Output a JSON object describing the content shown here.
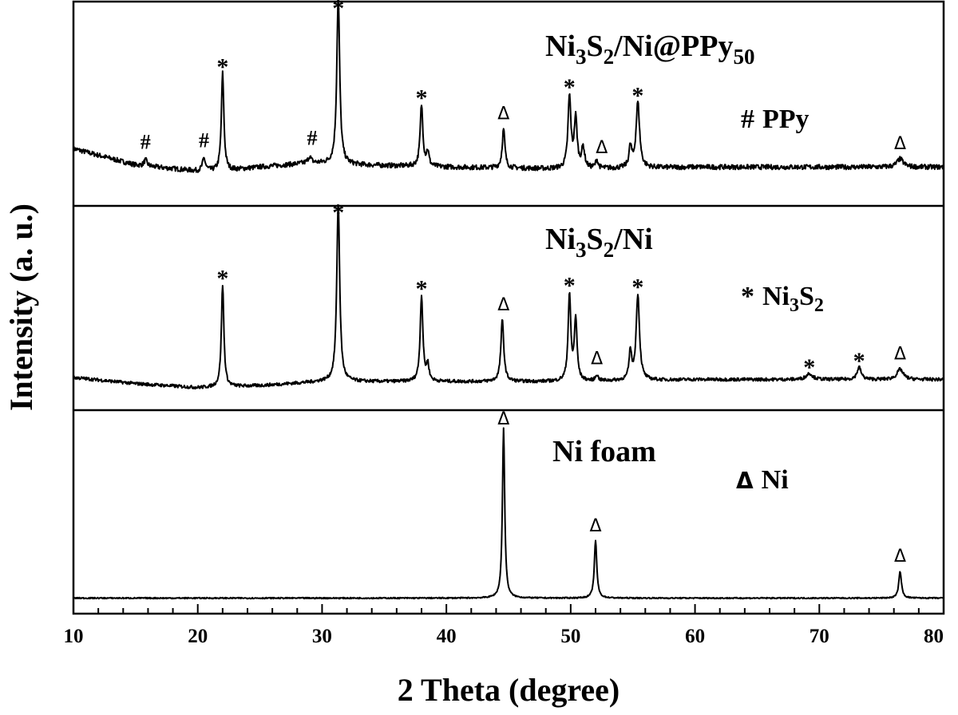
{
  "chart_data": {
    "type": "line",
    "xlabel": "2 Theta (degree)",
    "ylabel": "Intensity (a. u.)",
    "xlim": [
      10,
      80
    ],
    "x_ticks": [
      "10",
      "20",
      "30",
      "40",
      "50",
      "60",
      "70",
      "80"
    ],
    "panels": [
      {
        "title": {
          "main": "Ni",
          "s1": "3",
          "mid": "S",
          "s2": "2",
          "rest": "/Ni@PPy",
          "s3": "50"
        },
        "legend": {
          "symbol": "#",
          "text": "PPy"
        },
        "ylim": [
          0,
          1.0
        ],
        "baseline": [
          [
            10,
            0.28
          ],
          [
            15,
            0.2
          ],
          [
            20,
            0.17
          ],
          [
            22,
            0.17
          ],
          [
            25,
            0.19
          ],
          [
            29,
            0.21
          ],
          [
            33,
            0.2
          ],
          [
            40,
            0.19
          ],
          [
            50,
            0.18
          ],
          [
            60,
            0.19
          ],
          [
            70,
            0.19
          ],
          [
            80,
            0.19
          ]
        ],
        "noise": 0.012,
        "peaks": [
          {
            "x": 15.8,
            "h": 0.03,
            "w": 0.15
          },
          {
            "x": 20.5,
            "h": 0.06,
            "w": 0.15
          },
          {
            "x": 22.0,
            "h": 0.48,
            "w": 0.12
          },
          {
            "x": 29.0,
            "h": 0.03,
            "w": 0.15
          },
          {
            "x": 31.3,
            "h": 0.82,
            "w": 0.14
          },
          {
            "x": 38.0,
            "h": 0.3,
            "w": 0.13
          },
          {
            "x": 38.5,
            "h": 0.07,
            "w": 0.12
          },
          {
            "x": 44.6,
            "h": 0.19,
            "w": 0.13
          },
          {
            "x": 49.9,
            "h": 0.35,
            "w": 0.14
          },
          {
            "x": 50.4,
            "h": 0.24,
            "w": 0.14
          },
          {
            "x": 51.0,
            "h": 0.1,
            "w": 0.15
          },
          {
            "x": 52.1,
            "h": 0.04,
            "w": 0.12
          },
          {
            "x": 54.8,
            "h": 0.1,
            "w": 0.13
          },
          {
            "x": 55.4,
            "h": 0.32,
            "w": 0.17
          },
          {
            "x": 76.5,
            "h": 0.04,
            "w": 0.3
          }
        ],
        "markers": [
          {
            "x": 15.8,
            "sym": "#"
          },
          {
            "x": 20.5,
            "sym": "#"
          },
          {
            "x": 22.0,
            "sym": "*"
          },
          {
            "x": 29.2,
            "sym": "#"
          },
          {
            "x": 31.3,
            "sym": "*"
          },
          {
            "x": 38.0,
            "sym": "*"
          },
          {
            "x": 44.6,
            "sym": "Δ"
          },
          {
            "x": 49.9,
            "sym": "*"
          },
          {
            "x": 52.5,
            "sym": "Δ"
          },
          {
            "x": 55.4,
            "sym": "*"
          },
          {
            "x": 76.5,
            "sym": "Δ"
          }
        ]
      },
      {
        "title": {
          "main": "Ni",
          "s1": "3",
          "mid": "S",
          "s2": "2",
          "rest": "/Ni",
          "s3": ""
        },
        "legend": {
          "symbol": "*",
          "text": "Ni",
          "s1": "3",
          "mid": "S",
          "s2": "2"
        },
        "ylim": [
          0,
          1.0
        ],
        "baseline": [
          [
            10,
            0.16
          ],
          [
            15,
            0.13
          ],
          [
            20,
            0.11
          ],
          [
            25,
            0.12
          ],
          [
            30,
            0.14
          ],
          [
            40,
            0.14
          ],
          [
            50,
            0.14
          ],
          [
            60,
            0.15
          ],
          [
            70,
            0.15
          ],
          [
            80,
            0.15
          ]
        ],
        "noise": 0.008,
        "peaks": [
          {
            "x": 22.0,
            "h": 0.5,
            "w": 0.12
          },
          {
            "x": 31.3,
            "h": 0.88,
            "w": 0.14
          },
          {
            "x": 38.0,
            "h": 0.42,
            "w": 0.13
          },
          {
            "x": 38.5,
            "h": 0.08,
            "w": 0.12
          },
          {
            "x": 44.5,
            "h": 0.3,
            "w": 0.14
          },
          {
            "x": 49.9,
            "h": 0.42,
            "w": 0.13
          },
          {
            "x": 50.4,
            "h": 0.3,
            "w": 0.13
          },
          {
            "x": 52.1,
            "h": 0.03,
            "w": 0.12
          },
          {
            "x": 54.8,
            "h": 0.14,
            "w": 0.12
          },
          {
            "x": 55.4,
            "h": 0.42,
            "w": 0.16
          },
          {
            "x": 69.2,
            "h": 0.03,
            "w": 0.3
          },
          {
            "x": 73.2,
            "h": 0.06,
            "w": 0.2
          },
          {
            "x": 76.5,
            "h": 0.05,
            "w": 0.3
          }
        ],
        "markers": [
          {
            "x": 22.0,
            "sym": "*"
          },
          {
            "x": 31.3,
            "sym": "*"
          },
          {
            "x": 38.0,
            "sym": "*"
          },
          {
            "x": 44.6,
            "sym": "Δ"
          },
          {
            "x": 49.9,
            "sym": "*"
          },
          {
            "x": 52.1,
            "sym": "Δ"
          },
          {
            "x": 55.4,
            "sym": "*"
          },
          {
            "x": 69.2,
            "sym": "*"
          },
          {
            "x": 73.2,
            "sym": "*"
          },
          {
            "x": 76.5,
            "sym": "Δ"
          }
        ]
      },
      {
        "title": {
          "main": "Ni foam",
          "s1": "",
          "mid": "",
          "s2": "",
          "rest": "",
          "s3": ""
        },
        "legend": {
          "symbol": "Δ",
          "text": "Ni"
        },
        "ylim": [
          0,
          1.0
        ],
        "baseline": [
          [
            10,
            0.08
          ],
          [
            80,
            0.08
          ]
        ],
        "noise": 0.003,
        "peaks": [
          {
            "x": 44.6,
            "h": 0.83,
            "w": 0.11
          },
          {
            "x": 52.0,
            "h": 0.28,
            "w": 0.12
          },
          {
            "x": 76.5,
            "h": 0.13,
            "w": 0.13
          }
        ],
        "markers": [
          {
            "x": 44.6,
            "sym": "Δ"
          },
          {
            "x": 52.0,
            "sym": "Δ"
          },
          {
            "x": 76.5,
            "sym": "Δ"
          }
        ]
      }
    ]
  }
}
